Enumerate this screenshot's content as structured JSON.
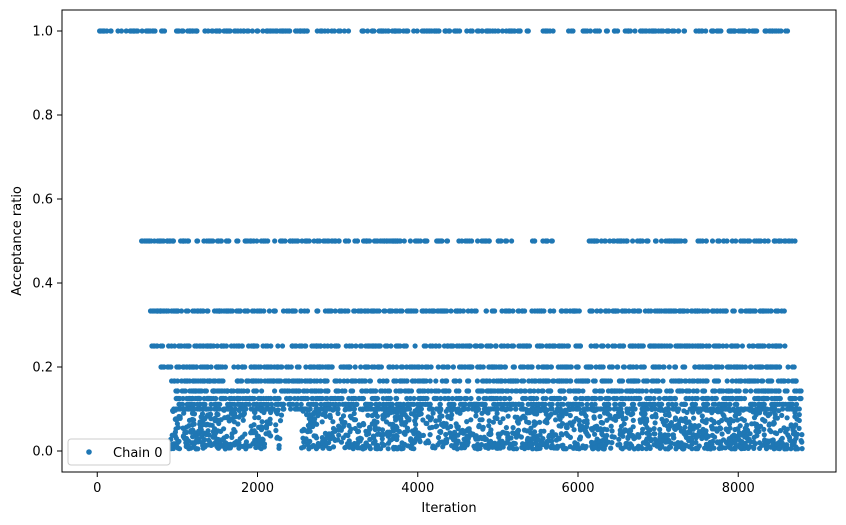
{
  "chart_data": {
    "type": "scatter",
    "title": "",
    "xlabel": "Iteration",
    "ylabel": "Acceptance ratio",
    "xlim": [
      -440,
      9220
    ],
    "ylim": [
      -0.05,
      1.05
    ],
    "xticks": [
      0,
      2000,
      4000,
      6000,
      8000
    ],
    "yticks": [
      0.0,
      0.2,
      0.4,
      0.6,
      0.8,
      1.0
    ],
    "xtick_labels": [
      "0",
      "2000",
      "4000",
      "6000",
      "8000"
    ],
    "ytick_labels": [
      "0.0",
      "0.2",
      "0.4",
      "0.6",
      "0.8",
      "1.0"
    ],
    "grid": false,
    "legend": {
      "position": "lower-left",
      "entries": [
        "Chain 0"
      ]
    },
    "series": [
      {
        "name": "Chain 0",
        "color": "#1f77b4",
        "marker": "circle",
        "x_range": [
          0,
          8800
        ],
        "levels": [
          {
            "y": 1.0,
            "x_segments": [
              [
                0,
                5300
              ],
              [
                5350,
                5420
              ],
              [
                5550,
                5700
              ],
              [
                5880,
                5950
              ],
              [
                6050,
                8620
              ]
            ]
          },
          {
            "y": 0.5,
            "x_segments": [
              [
                550,
                5300
              ],
              [
                5420,
                5480
              ],
              [
                5550,
                5700
              ],
              [
                6120,
                8720
              ]
            ]
          },
          {
            "y": 0.3333,
            "x_segments": [
              [
                650,
                8580
              ]
            ]
          },
          {
            "y": 0.25,
            "x_segments": [
              [
                680,
                8650
              ]
            ]
          },
          {
            "y": 0.2,
            "x_segments": [
              [
                780,
                8700
              ]
            ]
          },
          {
            "y": 0.1667,
            "x_segments": [
              [
                920,
                8750
              ]
            ]
          },
          {
            "y": 0.1429,
            "x_segments": [
              [
                940,
                8790
              ]
            ]
          },
          {
            "y": 0.125,
            "x_segments": [
              [
                960,
                8800
              ]
            ]
          },
          {
            "y": 0.1111,
            "x_segments": [
              [
                980,
                8800
              ]
            ]
          },
          {
            "y": 0.1,
            "x_segments": [
              [
                900,
                8800
              ]
            ]
          }
        ],
        "dense_regions": [
          {
            "x": [
              900,
              2300
            ],
            "y": [
              0.0,
              0.1
            ]
          },
          {
            "x": [
              2550,
              8800
            ],
            "y": [
              0.0,
              0.1
            ]
          }
        ]
      }
    ]
  }
}
